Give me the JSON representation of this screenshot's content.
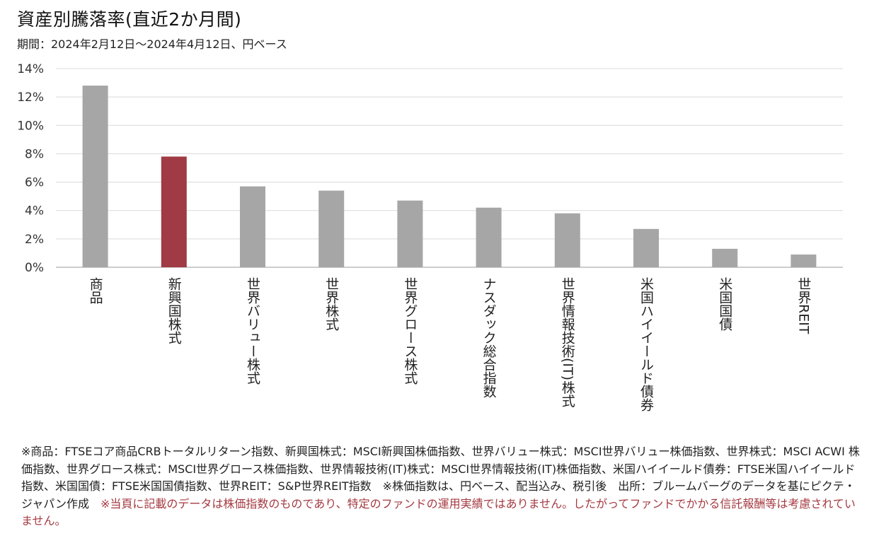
{
  "title": "資産別騰落率(直近2か月間)",
  "subtitle": "期間：2024年2月12日～2024年4月12日、円ベース",
  "colors": {
    "bar": "#a6a6a6",
    "highlight": "#a03a44",
    "grid": "#d9d9d9",
    "axis": "#999999"
  },
  "chart_data": {
    "type": "bar",
    "title": "資産別騰落率(直近2か月間)",
    "subtitle": "期間：2024年2月12日～2024年4月12日、円ベース",
    "xlabel": "",
    "ylabel": "",
    "categories": [
      "商品",
      "新興国株式",
      "世界バリュー株式",
      "世界株式",
      "世界グロース株式",
      "ナスダック総合指数",
      "世界情報技術(IT)株式",
      "米国ハイイールド債券",
      "米国国債",
      "世界REIT"
    ],
    "values": [
      12.8,
      7.8,
      5.7,
      5.4,
      4.7,
      4.2,
      3.8,
      2.7,
      1.3,
      0.9
    ],
    "highlight_index": 1,
    "ylim": [
      0,
      14
    ],
    "yticks": [
      0,
      2,
      4,
      6,
      8,
      10,
      12,
      14
    ],
    "ytick_labels": [
      "0%",
      "2%",
      "4%",
      "6%",
      "8%",
      "10%",
      "12%",
      "14%"
    ],
    "grid": true,
    "unit": "%"
  },
  "footnote": {
    "text": "※商品：FTSEコア商品CRBトータルリターン指数、新興国株式：MSCI新興国株価指数、世界バリュー株式：MSCI世界バリュー株価指数、世界株式：MSCI ACWI 株価指数、世界グロース株式：MSCI世界グロース株価指数、世界情報技術(IT)株式：MSCI世界情報技術(IT)株価指数、米国ハイイールド債券：FTSE米国ハイイールド指数、米国国債：FTSE米国国債指数、世界REIT：S&P世界REIT指数　※株価指数は、円ベース、配当込み、税引後　出所：ブルームバーグのデータを基にピクテ・ジャパン作成　",
    "disclaimer": "※当頁に記載のデータは株価指数のものであり、特定のファンドの運用実績ではありません。したがってファンドでかかる信託報酬等は考慮されていません。"
  }
}
